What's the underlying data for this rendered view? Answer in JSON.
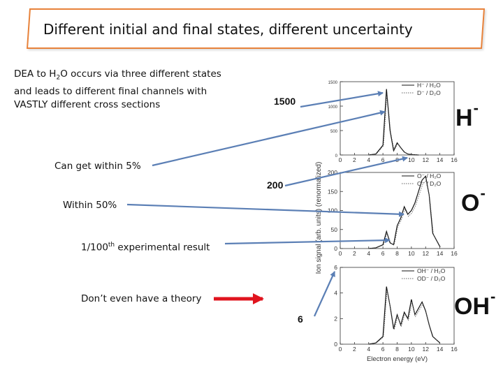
{
  "slide": {
    "title": "Different initial and final states, different uncertainty",
    "intro_pre": "DEA to H",
    "intro_sub1": "2",
    "intro_post": "O occurs via three different states and leads to different final channels with VASTLY different cross sections",
    "row1": "Can get within 5%",
    "row2": "Within 50%",
    "row3_pre": "1/100",
    "row3_sup": "th",
    "row3_post": " experimental result",
    "row4": "Don’t even have a theory",
    "ann1": "1500",
    "ann2": "200",
    "ann3": "6",
    "label_h": "H",
    "label_o": "O",
    "label_oh": "OH",
    "minus": "-",
    "arrow_color": "#5b7fb5",
    "red_arrow_color": "#e0141e",
    "title_border_color": "#e8823a"
  },
  "chart_data": [
    {
      "type": "line",
      "panel": "H-",
      "series": [
        {
          "name": "H⁻ / H₂O"
        },
        {
          "name": "D⁻ / D₂O"
        }
      ],
      "ytick_labels": [
        "1500",
        "1000",
        "500",
        "0"
      ],
      "x": [
        4,
        5,
        6,
        6.5,
        7,
        7.5,
        8,
        8.5,
        9,
        9.5,
        10,
        11
      ],
      "values": [
        0,
        20,
        200,
        1350,
        500,
        90,
        250,
        150,
        60,
        20,
        10,
        0
      ]
    },
    {
      "type": "line",
      "panel": "O-",
      "series": [
        {
          "name": "O⁻ / H₂O"
        },
        {
          "name": "O⁻ / D₂O"
        }
      ],
      "ytick_labels": [
        "200",
        "150",
        "100",
        "50",
        "0"
      ],
      "x": [
        4,
        5,
        6,
        6.5,
        7,
        7.5,
        8,
        8.5,
        9,
        9.5,
        10,
        10.5,
        11,
        11.5,
        12,
        12.5,
        13,
        14
      ],
      "values": [
        0,
        2,
        10,
        45,
        15,
        10,
        60,
        80,
        110,
        90,
        100,
        120,
        150,
        180,
        190,
        140,
        40,
        5
      ]
    },
    {
      "type": "line",
      "panel": "OH-",
      "series": [
        {
          "name": "OH⁻ / H₂O"
        },
        {
          "name": "OD⁻ / D₂O"
        }
      ],
      "ytick_labels": [
        "6",
        "4",
        "2",
        "0"
      ],
      "x": [
        4,
        5,
        6,
        6.5,
        7,
        7.5,
        8,
        8.5,
        9,
        9.5,
        10,
        10.5,
        11,
        11.5,
        12,
        12.5,
        13,
        14
      ],
      "values": [
        0,
        0.1,
        0.6,
        4.5,
        3.0,
        1.2,
        2.3,
        1.5,
        2.5,
        2.0,
        3.5,
        2.3,
        2.8,
        3.3,
        2.6,
        1.5,
        0.6,
        0.1
      ],
      "xlabel": "Electron energy (eV)"
    }
  ],
  "shared_axis": {
    "ylabel": "Ion signal (arb. units) (renormalized)",
    "xtick_labels": [
      "0",
      "2",
      "4",
      "6",
      "8",
      "10",
      "12",
      "14",
      "16"
    ]
  }
}
